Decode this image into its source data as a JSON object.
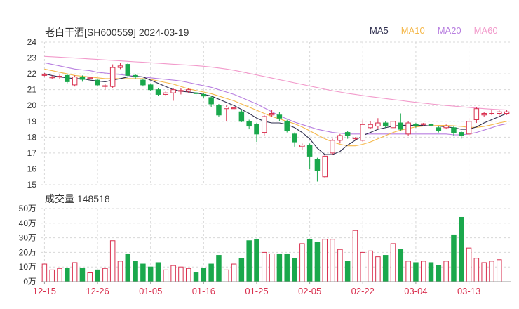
{
  "header": {
    "title": "老白干酒[SH600559] 2024-03-19",
    "legend": [
      {
        "label": "MA5",
        "color": "#2f2f4f"
      },
      {
        "label": "MA10",
        "color": "#f5b84a"
      },
      {
        "label": "MA20",
        "color": "#b87fe0"
      },
      {
        "label": "MA60",
        "color": "#f29acb"
      }
    ],
    "volume_label": "成交量 148518"
  },
  "colors": {
    "up": "#d9304f",
    "down": "#1aa84c",
    "grid": "#d8d8d8",
    "axis": "#333333"
  },
  "chart_data": [
    {
      "type": "candlestick",
      "title": "老白干酒[SH600559] 2024-03-19",
      "ylim": [
        15,
        24
      ],
      "y_ticks": [
        "15",
        "16",
        "17",
        "18",
        "19",
        "20",
        "21",
        "22",
        "23",
        "24"
      ],
      "x_tick_labels": [
        {
          "index": 0,
          "label": "12-15"
        },
        {
          "index": 7,
          "label": "12-26"
        },
        {
          "index": 14,
          "label": "01-05"
        },
        {
          "index": 21,
          "label": "01-16"
        },
        {
          "index": 28,
          "label": "01-25"
        },
        {
          "index": 35,
          "label": "02-05"
        },
        {
          "index": 42,
          "label": "02-22"
        },
        {
          "index": 49,
          "label": "03-04"
        },
        {
          "index": 56,
          "label": "03-13"
        }
      ],
      "candles": [
        [
          21.9,
          21.95,
          21.85,
          22.05
        ],
        [
          21.75,
          21.8,
          21.65,
          21.9
        ],
        [
          21.8,
          21.85,
          21.7,
          21.95
        ],
        [
          21.9,
          21.5,
          21.4,
          22.0
        ],
        [
          21.3,
          21.8,
          21.2,
          21.9
        ],
        [
          21.8,
          21.65,
          21.5,
          21.9
        ],
        [
          21.7,
          21.75,
          21.6,
          21.8
        ],
        [
          21.6,
          21.3,
          21.2,
          21.7
        ],
        [
          21.2,
          21.25,
          21.0,
          21.35
        ],
        [
          21.2,
          22.4,
          21.1,
          22.6
        ],
        [
          22.4,
          22.5,
          22.3,
          22.7
        ],
        [
          22.6,
          21.9,
          21.8,
          22.7
        ],
        [
          21.9,
          21.8,
          21.7,
          22.0
        ],
        [
          21.6,
          21.3,
          21.2,
          21.7
        ],
        [
          21.3,
          21.0,
          20.9,
          21.4
        ],
        [
          21.0,
          20.7,
          20.6,
          21.1
        ],
        [
          20.7,
          20.8,
          20.6,
          20.9
        ],
        [
          20.8,
          21.0,
          20.3,
          21.1
        ],
        [
          20.9,
          20.95,
          20.7,
          21.1
        ],
        [
          20.9,
          21.0,
          20.8,
          21.1
        ],
        [
          20.8,
          20.75,
          20.6,
          20.9
        ],
        [
          20.7,
          20.6,
          20.5,
          20.8
        ],
        [
          20.5,
          20.1,
          19.9,
          20.6
        ],
        [
          20.0,
          19.4,
          19.3,
          20.1
        ],
        [
          19.8,
          19.9,
          19.0,
          20.0
        ],
        [
          19.8,
          19.85,
          19.7,
          19.9
        ],
        [
          19.6,
          19.0,
          18.95,
          19.7
        ],
        [
          19.0,
          18.7,
          18.5,
          19.1
        ],
        [
          18.8,
          18.2,
          17.7,
          18.9
        ],
        [
          18.3,
          19.3,
          18.1,
          19.4
        ],
        [
          19.4,
          19.5,
          19.3,
          19.7
        ],
        [
          19.4,
          19.2,
          19.0,
          19.6
        ],
        [
          19.0,
          18.4,
          18.3,
          19.1
        ],
        [
          18.2,
          17.7,
          17.4,
          18.3
        ],
        [
          17.4,
          17.5,
          17.2,
          17.6
        ],
        [
          17.5,
          16.8,
          16.0,
          17.6
        ],
        [
          16.6,
          15.9,
          15.2,
          16.7
        ],
        [
          15.5,
          16.8,
          15.4,
          16.9
        ],
        [
          17.0,
          17.8,
          16.9,
          17.9
        ],
        [
          17.8,
          18.1,
          17.6,
          18.2
        ],
        [
          18.3,
          18.1,
          17.9,
          18.4
        ],
        [
          17.9,
          17.95,
          17.8,
          18.0
        ],
        [
          17.8,
          18.8,
          17.7,
          19.1
        ],
        [
          18.6,
          18.8,
          18.5,
          19.0
        ],
        [
          18.7,
          18.9,
          18.5,
          19.2
        ],
        [
          18.9,
          18.7,
          18.6,
          19.0
        ],
        [
          18.6,
          19.0,
          18.5,
          19.1
        ],
        [
          18.9,
          18.5,
          18.4,
          19.5
        ],
        [
          18.2,
          18.9,
          18.1,
          19.0
        ],
        [
          18.8,
          18.75,
          18.6,
          18.9
        ],
        [
          18.8,
          18.85,
          18.7,
          18.9
        ],
        [
          18.8,
          18.75,
          18.6,
          18.9
        ],
        [
          18.6,
          18.4,
          18.3,
          18.7
        ],
        [
          18.6,
          18.7,
          18.5,
          18.8
        ],
        [
          18.6,
          18.3,
          18.1,
          18.7
        ],
        [
          18.3,
          18.1,
          17.9,
          18.4
        ],
        [
          18.2,
          19.0,
          18.1,
          19.2
        ],
        [
          19.1,
          19.8,
          18.9,
          19.9
        ],
        [
          19.4,
          19.5,
          19.3,
          19.6
        ],
        [
          19.5,
          19.5,
          19.4,
          19.7
        ],
        [
          19.5,
          19.6,
          19.3,
          19.7
        ],
        [
          19.5,
          19.6,
          19.4,
          19.7
        ]
      ],
      "ma": {
        "MA5": [
          22.0,
          21.9,
          21.8,
          21.75,
          21.7,
          21.7,
          21.6,
          21.55,
          21.5,
          21.6,
          21.7,
          21.8,
          21.85,
          21.8,
          21.6,
          21.4,
          21.2,
          21.0,
          20.9,
          20.85,
          20.8,
          20.7,
          20.6,
          20.4,
          20.2,
          20.0,
          19.75,
          19.5,
          19.2,
          19.0,
          18.9,
          18.9,
          18.8,
          18.6,
          18.3,
          17.9,
          17.3,
          16.9,
          16.9,
          17.1,
          17.5,
          17.8,
          18.1,
          18.3,
          18.5,
          18.6,
          18.7,
          18.75,
          18.75,
          18.75,
          18.75,
          18.7,
          18.7,
          18.65,
          18.6,
          18.5,
          18.5,
          18.65,
          18.9,
          19.1,
          19.3,
          19.5
        ],
        "MA10": [
          22.3,
          22.2,
          22.1,
          22.0,
          21.9,
          21.85,
          21.8,
          21.75,
          21.7,
          21.7,
          21.7,
          21.7,
          21.7,
          21.7,
          21.65,
          21.55,
          21.45,
          21.35,
          21.2,
          21.05,
          20.95,
          20.85,
          20.75,
          20.6,
          20.45,
          20.3,
          20.1,
          19.9,
          19.7,
          19.5,
          19.3,
          19.15,
          19.0,
          18.85,
          18.65,
          18.4,
          18.15,
          17.9,
          17.7,
          17.55,
          17.45,
          17.45,
          17.55,
          17.7,
          17.9,
          18.1,
          18.3,
          18.45,
          18.55,
          18.65,
          18.7,
          18.72,
          18.74,
          18.74,
          18.72,
          18.68,
          18.62,
          18.62,
          18.68,
          18.78,
          18.9,
          19.0
        ],
        "MA20": [
          22.7,
          22.6,
          22.5,
          22.4,
          22.3,
          22.25,
          22.2,
          22.1,
          22.05,
          22.0,
          21.95,
          21.9,
          21.85,
          21.8,
          21.75,
          21.7,
          21.65,
          21.6,
          21.55,
          21.45,
          21.35,
          21.25,
          21.15,
          21.0,
          20.85,
          20.7,
          20.5,
          20.3,
          20.1,
          19.85,
          19.6,
          19.35,
          19.15,
          18.95,
          18.8,
          18.65,
          18.5,
          18.4,
          18.3,
          18.25,
          18.2,
          18.2,
          18.2,
          18.2,
          18.2,
          18.2,
          18.2,
          18.2,
          18.2,
          18.2,
          18.2,
          18.2,
          18.2,
          18.2,
          18.15,
          18.15,
          18.2,
          18.3,
          18.45,
          18.6,
          18.75,
          18.85
        ],
        "MA60": [
          23.1,
          23.08,
          23.05,
          23.02,
          23.0,
          22.97,
          22.94,
          22.91,
          22.88,
          22.85,
          22.82,
          22.79,
          22.76,
          22.73,
          22.7,
          22.67,
          22.64,
          22.61,
          22.58,
          22.55,
          22.52,
          22.48,
          22.43,
          22.37,
          22.3,
          22.22,
          22.13,
          22.03,
          21.93,
          21.83,
          21.73,
          21.63,
          21.53,
          21.43,
          21.33,
          21.23,
          21.13,
          21.03,
          20.93,
          20.85,
          20.77,
          20.7,
          20.63,
          20.56,
          20.5,
          20.44,
          20.38,
          20.32,
          20.26,
          20.2,
          20.15,
          20.1,
          20.05,
          20.0,
          19.96,
          19.92,
          19.88,
          19.84,
          19.8,
          19.77,
          19.74,
          19.72
        ]
      }
    },
    {
      "type": "bar",
      "title": "成交量 148518",
      "ylim": [
        0,
        50
      ],
      "y_ticks": [
        "0万",
        "10万",
        "20万",
        "30万",
        "40万",
        "50万"
      ],
      "values_wan": [
        12,
        8,
        9,
        9,
        13,
        9,
        6,
        8,
        9,
        28,
        14,
        19,
        14,
        12,
        10,
        13,
        8,
        11,
        10,
        9,
        6,
        9,
        12,
        18,
        8,
        12,
        16,
        28,
        29,
        20,
        19,
        19,
        19,
        16,
        26,
        29,
        27,
        29,
        29,
        22,
        14,
        35,
        20,
        21,
        17,
        18,
        26,
        22,
        14,
        13,
        14,
        13,
        11,
        14,
        32,
        44,
        23,
        16,
        13,
        14,
        15
      ]
    }
  ]
}
